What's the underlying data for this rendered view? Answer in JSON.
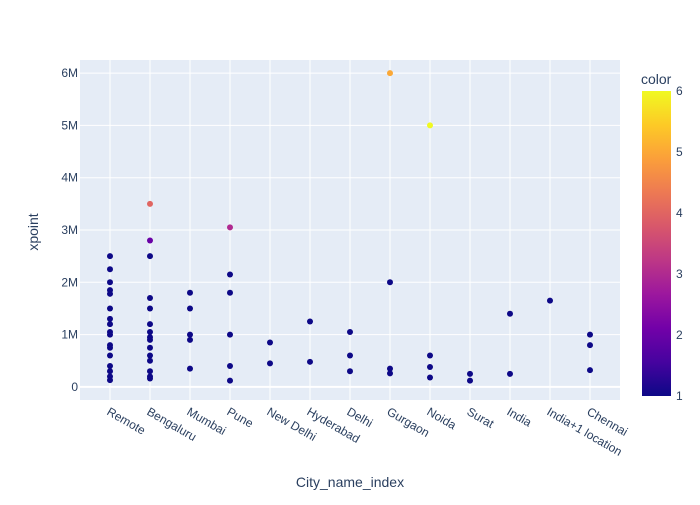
{
  "chart_data": {
    "type": "scatter",
    "xlabel": "City_name_index",
    "ylabel": "xpoint",
    "categories": [
      "Remote",
      "Bengaluru",
      "Mumbai",
      "Pune",
      "New Delhi",
      "Hyderabad",
      "Delhi",
      "Gurgaon",
      "Noida",
      "Surat",
      "India",
      "India+1 location",
      "Chennai"
    ],
    "ylim": [
      -250000,
      6250000
    ],
    "yticks": [
      0,
      1000000,
      2000000,
      3000000,
      4000000,
      5000000,
      6000000
    ],
    "ytick_labels": [
      "0",
      "1M",
      "2M",
      "3M",
      "4M",
      "5M",
      "6M"
    ],
    "grid": true,
    "plot_bgcolor": "#e5ecf6",
    "colorbar": {
      "title": "color",
      "range": [
        1,
        6
      ],
      "ticks": [
        1,
        2,
        3,
        4,
        5,
        6
      ],
      "tick_labels": [
        "1",
        "2",
        "3",
        "4",
        "5",
        "6"
      ],
      "colorscale": [
        "#0d0887",
        "#46039f",
        "#7201a8",
        "#9c179e",
        "#bd3786",
        "#d8576b",
        "#ed7953",
        "#fb9f3a",
        "#fdca26",
        "#f0f921"
      ]
    },
    "points": [
      {
        "x": "Remote",
        "y": 2500000,
        "c": 1
      },
      {
        "x": "Remote",
        "y": 2250000,
        "c": 1
      },
      {
        "x": "Remote",
        "y": 2000000,
        "c": 1
      },
      {
        "x": "Remote",
        "y": 1850000,
        "c": 1
      },
      {
        "x": "Remote",
        "y": 1780000,
        "c": 1
      },
      {
        "x": "Remote",
        "y": 1500000,
        "c": 1
      },
      {
        "x": "Remote",
        "y": 1300000,
        "c": 1
      },
      {
        "x": "Remote",
        "y": 1200000,
        "c": 1
      },
      {
        "x": "Remote",
        "y": 1050000,
        "c": 1
      },
      {
        "x": "Remote",
        "y": 1000000,
        "c": 1
      },
      {
        "x": "Remote",
        "y": 800000,
        "c": 1
      },
      {
        "x": "Remote",
        "y": 750000,
        "c": 1
      },
      {
        "x": "Remote",
        "y": 600000,
        "c": 1
      },
      {
        "x": "Remote",
        "y": 400000,
        "c": 1
      },
      {
        "x": "Remote",
        "y": 300000,
        "c": 1
      },
      {
        "x": "Remote",
        "y": 200000,
        "c": 1
      },
      {
        "x": "Remote",
        "y": 130000,
        "c": 1
      },
      {
        "x": "Bengaluru",
        "y": 3500000,
        "c": 4
      },
      {
        "x": "Bengaluru",
        "y": 2800000,
        "c": 2
      },
      {
        "x": "Bengaluru",
        "y": 2500000,
        "c": 1
      },
      {
        "x": "Bengaluru",
        "y": 1700000,
        "c": 1
      },
      {
        "x": "Bengaluru",
        "y": 1500000,
        "c": 1
      },
      {
        "x": "Bengaluru",
        "y": 1200000,
        "c": 1
      },
      {
        "x": "Bengaluru",
        "y": 1050000,
        "c": 1
      },
      {
        "x": "Bengaluru",
        "y": 950000,
        "c": 1
      },
      {
        "x": "Bengaluru",
        "y": 900000,
        "c": 1
      },
      {
        "x": "Bengaluru",
        "y": 750000,
        "c": 1
      },
      {
        "x": "Bengaluru",
        "y": 600000,
        "c": 1
      },
      {
        "x": "Bengaluru",
        "y": 500000,
        "c": 1
      },
      {
        "x": "Bengaluru",
        "y": 300000,
        "c": 1
      },
      {
        "x": "Bengaluru",
        "y": 200000,
        "c": 1
      },
      {
        "x": "Bengaluru",
        "y": 160000,
        "c": 1
      },
      {
        "x": "Mumbai",
        "y": 1800000,
        "c": 1
      },
      {
        "x": "Mumbai",
        "y": 1500000,
        "c": 1
      },
      {
        "x": "Mumbai",
        "y": 1000000,
        "c": 1
      },
      {
        "x": "Mumbai",
        "y": 900000,
        "c": 1
      },
      {
        "x": "Mumbai",
        "y": 350000,
        "c": 1
      },
      {
        "x": "Pune",
        "y": 3050000,
        "c": 3
      },
      {
        "x": "Pune",
        "y": 2150000,
        "c": 1
      },
      {
        "x": "Pune",
        "y": 1800000,
        "c": 1
      },
      {
        "x": "Pune",
        "y": 1000000,
        "c": 1
      },
      {
        "x": "Pune",
        "y": 400000,
        "c": 1
      },
      {
        "x": "Pune",
        "y": 120000,
        "c": 1
      },
      {
        "x": "New Delhi",
        "y": 850000,
        "c": 1
      },
      {
        "x": "New Delhi",
        "y": 450000,
        "c": 1
      },
      {
        "x": "Hyderabad",
        "y": 1250000,
        "c": 1
      },
      {
        "x": "Hyderabad",
        "y": 480000,
        "c": 1
      },
      {
        "x": "Delhi",
        "y": 1050000,
        "c": 1
      },
      {
        "x": "Delhi",
        "y": 600000,
        "c": 1
      },
      {
        "x": "Delhi",
        "y": 300000,
        "c": 1
      },
      {
        "x": "Gurgaon",
        "y": 6000000,
        "c": 5
      },
      {
        "x": "Gurgaon",
        "y": 2000000,
        "c": 1
      },
      {
        "x": "Gurgaon",
        "y": 350000,
        "c": 1
      },
      {
        "x": "Gurgaon",
        "y": 260000,
        "c": 1
      },
      {
        "x": "Noida",
        "y": 5000000,
        "c": 6
      },
      {
        "x": "Noida",
        "y": 600000,
        "c": 1
      },
      {
        "x": "Noida",
        "y": 380000,
        "c": 1
      },
      {
        "x": "Noida",
        "y": 180000,
        "c": 1
      },
      {
        "x": "Surat",
        "y": 250000,
        "c": 1
      },
      {
        "x": "Surat",
        "y": 120000,
        "c": 1
      },
      {
        "x": "India",
        "y": 1400000,
        "c": 1
      },
      {
        "x": "India",
        "y": 250000,
        "c": 1
      },
      {
        "x": "India+1 location",
        "y": 1650000,
        "c": 1
      },
      {
        "x": "Chennai",
        "y": 1000000,
        "c": 1
      },
      {
        "x": "Chennai",
        "y": 800000,
        "c": 1
      },
      {
        "x": "Chennai",
        "y": 320000,
        "c": 1
      }
    ]
  }
}
